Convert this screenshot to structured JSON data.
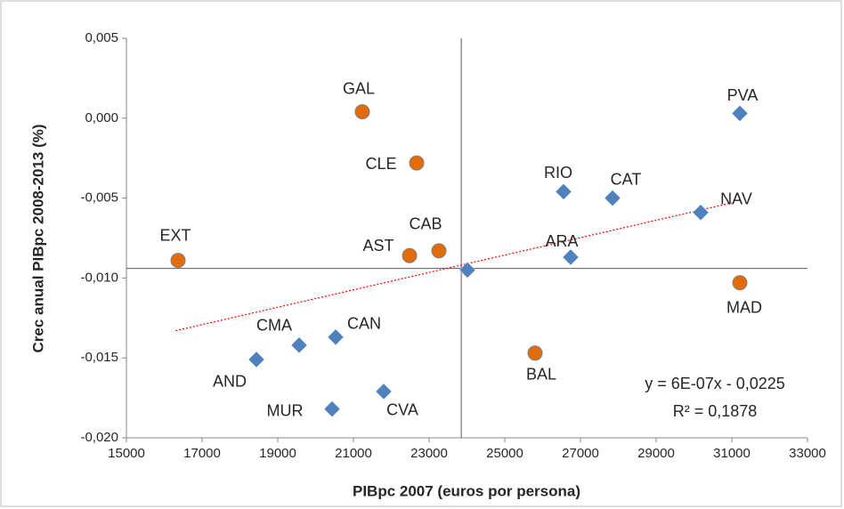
{
  "chart_data": {
    "type": "scatter",
    "x_label": "PIBpc 2007 (euros por persona)",
    "y_label": "Crec anual PIBpc 2008-2013 (%)",
    "xlim": [
      15000,
      33000
    ],
    "xticks": [
      15000,
      17000,
      19000,
      21000,
      23000,
      25000,
      27000,
      29000,
      31000,
      33000
    ],
    "ylim": [
      -0.02,
      0.005
    ],
    "yticks": [
      {
        "value": -0.02,
        "label": "-0,020"
      },
      {
        "value": -0.015,
        "label": "-0,015"
      },
      {
        "value": -0.01,
        "label": "-0,010"
      },
      {
        "value": -0.005,
        "label": "-0,005"
      },
      {
        "value": 0,
        "label": "0,000"
      },
      {
        "value": 0.005,
        "label": "0,005"
      }
    ],
    "grid": false,
    "reference_lines": {
      "x": 23850,
      "y": -0.0094,
      "color": "#595959"
    },
    "series": [
      {
        "marker": "circle",
        "color": "#e36c0a",
        "labels": [
          "GAL",
          "CLE",
          "EXT",
          "AST",
          "CAB",
          "MAD",
          "BAL"
        ],
        "x": [
          21235,
          22671,
          16365,
          22483,
          23259,
          31212,
          25800
        ],
        "values": [
          0.0004,
          -0.0028,
          -0.0089,
          -0.0086,
          -0.0083,
          -0.0103,
          -0.0147
        ]
      },
      {
        "marker": "diamond",
        "color": "#4f81bd",
        "labels": [
          "PVA",
          "RIO",
          "CAT",
          "NAV",
          "ARA",
          null,
          "CMA",
          "CAN",
          "AND",
          "MUR",
          "CVA"
        ],
        "x": [
          31212,
          26553,
          27847,
          30177,
          26741,
          24012,
          19565,
          20530,
          18435,
          20435,
          21800
        ],
        "values": [
          0.0003,
          -0.0046,
          -0.005,
          -0.0059,
          -0.0087,
          -0.0095,
          -0.0142,
          -0.0137,
          -0.0151,
          -0.0182,
          -0.0171
        ]
      }
    ],
    "trendline": {
      "color": "#ff0000",
      "x": [
        16300,
        31000
      ],
      "values": [
        -0.0133,
        -0.0053
      ]
    },
    "annotations": [
      "y = 6E-07x - 0,0225",
      "R² = 0,1878"
    ]
  }
}
